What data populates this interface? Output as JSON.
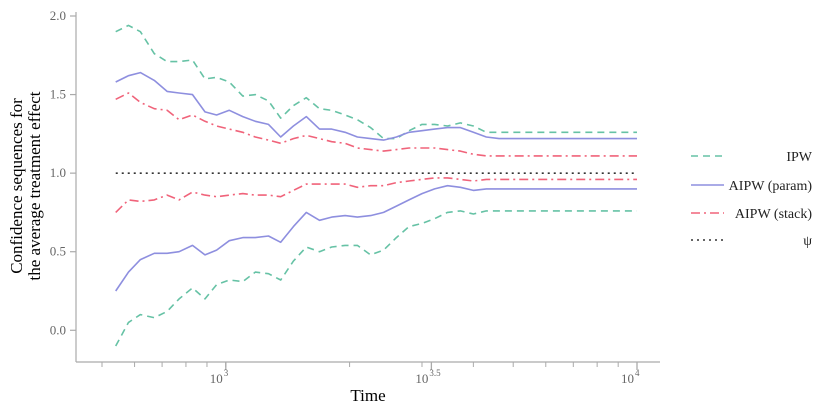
{
  "chart_data": {
    "type": "line",
    "xlabel": "Time",
    "ylabel_line1": "Confidence sequences for",
    "ylabel_line2": "the average treatment effect",
    "x_scale": "log10",
    "xlim": [
      500,
      10000
    ],
    "ylim": [
      -0.1,
      2.0
    ],
    "x_ticks": [
      {
        "value": 1000,
        "base": "10",
        "exp": "3"
      },
      {
        "value": 3162.28,
        "base": "10",
        "exp": "3.5"
      },
      {
        "value": 10000,
        "base": "10",
        "exp": "4"
      }
    ],
    "y_ticks": [
      {
        "value": 0.0,
        "label": "0.0"
      },
      {
        "value": 0.5,
        "label": "0.5"
      },
      {
        "value": 1.0,
        "label": "1.0"
      },
      {
        "value": 1.5,
        "label": "1.5"
      },
      {
        "value": 2.0,
        "label": "2.0"
      }
    ],
    "grid": false,
    "legend_position": "right",
    "x": [
      540,
      580,
      620,
      670,
      720,
      770,
      830,
      890,
      950,
      1020,
      1100,
      1180,
      1270,
      1360,
      1460,
      1570,
      1690,
      1810,
      1950,
      2090,
      2250,
      2420,
      2600,
      2790,
      3000,
      3220,
      3460,
      3720,
      4000,
      4300,
      4620,
      4960,
      5330,
      5730,
      6150,
      6610,
      7100,
      7630,
      8200,
      8810,
      9460,
      10000
    ],
    "series": [
      {
        "name": "IPW",
        "color": "#66c2a5",
        "dash": "7,5",
        "upper": [
          1.9,
          1.94,
          1.9,
          1.76,
          1.71,
          1.71,
          1.72,
          1.6,
          1.61,
          1.58,
          1.49,
          1.5,
          1.46,
          1.35,
          1.43,
          1.48,
          1.41,
          1.4,
          1.37,
          1.34,
          1.29,
          1.22,
          1.22,
          1.27,
          1.31,
          1.31,
          1.3,
          1.32,
          1.3,
          1.26,
          1.26,
          1.26,
          1.26,
          1.26,
          1.26,
          1.26,
          1.26,
          1.26,
          1.26,
          1.26,
          1.26,
          1.26
        ],
        "lower": [
          -0.1,
          0.05,
          0.1,
          0.08,
          0.12,
          0.2,
          0.27,
          0.2,
          0.29,
          0.32,
          0.31,
          0.37,
          0.36,
          0.32,
          0.44,
          0.53,
          0.5,
          0.53,
          0.54,
          0.54,
          0.48,
          0.51,
          0.59,
          0.66,
          0.68,
          0.71,
          0.75,
          0.76,
          0.74,
          0.76,
          0.76,
          0.76,
          0.76,
          0.76,
          0.76,
          0.76,
          0.76,
          0.76,
          0.76,
          0.76,
          0.76,
          0.76
        ]
      },
      {
        "name": "AIPW (param)",
        "color": "#8e8fdf",
        "dash": "",
        "upper": [
          1.58,
          1.62,
          1.64,
          1.59,
          1.52,
          1.51,
          1.5,
          1.39,
          1.37,
          1.4,
          1.36,
          1.33,
          1.31,
          1.23,
          1.3,
          1.36,
          1.28,
          1.28,
          1.26,
          1.23,
          1.22,
          1.21,
          1.23,
          1.26,
          1.27,
          1.28,
          1.29,
          1.29,
          1.26,
          1.23,
          1.22,
          1.22,
          1.22,
          1.22,
          1.22,
          1.22,
          1.22,
          1.22,
          1.22,
          1.22,
          1.22,
          1.22
        ],
        "lower": [
          0.25,
          0.37,
          0.45,
          0.49,
          0.49,
          0.5,
          0.54,
          0.48,
          0.51,
          0.57,
          0.59,
          0.59,
          0.6,
          0.56,
          0.66,
          0.75,
          0.7,
          0.72,
          0.73,
          0.72,
          0.73,
          0.75,
          0.79,
          0.83,
          0.87,
          0.9,
          0.92,
          0.91,
          0.89,
          0.9,
          0.9,
          0.9,
          0.9,
          0.9,
          0.9,
          0.9,
          0.9,
          0.9,
          0.9,
          0.9,
          0.9,
          0.9
        ]
      },
      {
        "name": "AIPW (stack)",
        "color": "#f0637a",
        "dash": "9,4,2,4",
        "upper": [
          1.47,
          1.51,
          1.45,
          1.41,
          1.4,
          1.34,
          1.37,
          1.33,
          1.3,
          1.28,
          1.26,
          1.23,
          1.21,
          1.19,
          1.22,
          1.24,
          1.22,
          1.2,
          1.19,
          1.16,
          1.15,
          1.14,
          1.15,
          1.16,
          1.16,
          1.16,
          1.15,
          1.14,
          1.12,
          1.11,
          1.11,
          1.11,
          1.11,
          1.11,
          1.11,
          1.11,
          1.11,
          1.11,
          1.11,
          1.11,
          1.11,
          1.11
        ],
        "lower": [
          0.75,
          0.83,
          0.82,
          0.83,
          0.86,
          0.83,
          0.88,
          0.86,
          0.85,
          0.86,
          0.87,
          0.86,
          0.86,
          0.85,
          0.89,
          0.93,
          0.93,
          0.93,
          0.93,
          0.91,
          0.92,
          0.92,
          0.94,
          0.95,
          0.96,
          0.97,
          0.97,
          0.96,
          0.95,
          0.96,
          0.96,
          0.96,
          0.96,
          0.96,
          0.96,
          0.96,
          0.96,
          0.96,
          0.96,
          0.96,
          0.96,
          0.96
        ]
      },
      {
        "name": "ψ",
        "color": "#333333",
        "dash": "2,4",
        "value": 1.0
      }
    ]
  }
}
